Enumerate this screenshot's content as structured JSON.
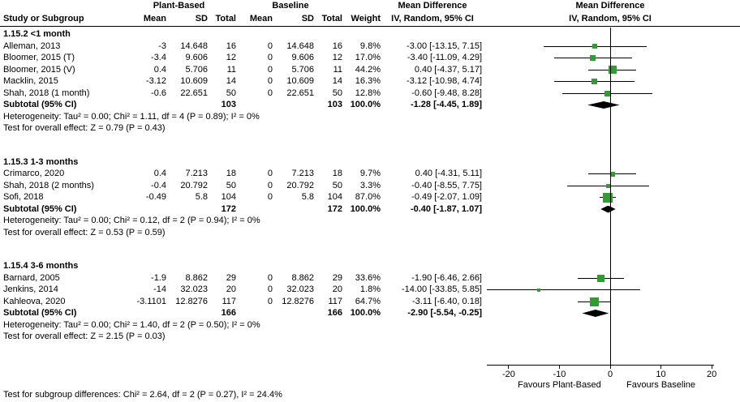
{
  "header": {
    "study": "Study or Subgroup",
    "group1": "Plant-Based",
    "group2": "Baseline",
    "mean": "Mean",
    "sd": "SD",
    "total": "Total",
    "weight": "Weight",
    "md": "Mean Difference",
    "md_method": "IV, Random, 95% CI"
  },
  "chart_data": {
    "type": "forest",
    "effect_measure": "Mean Difference, IV, Random, 95% CI",
    "x_min": -24.3,
    "x_max": 24.3,
    "x_ticks": [
      -20,
      -10,
      0,
      10,
      20
    ],
    "x_axis_left_label": "Favours Plant-Based",
    "x_axis_right_label": "Favours Baseline",
    "marker_color": "#2e9e2e",
    "diamond_color": "#000000",
    "subgroups": [
      {
        "label": "1.15.2 <1 month",
        "studies": [
          {
            "study": "Alleman, 2013",
            "mean1": "-3",
            "sd1": "14.648",
            "total1": "16",
            "mean2": "0",
            "sd2": "14.648",
            "total2": "16",
            "weight": "9.8%",
            "weight_pct": 9.8,
            "md": -3.0,
            "ci_low": -13.15,
            "ci_high": 7.15,
            "md_label": "-3.00 [-13.15, 7.15]"
          },
          {
            "study": "Bloomer, 2015 (T)",
            "mean1": "-3.4",
            "sd1": "9.606",
            "total1": "12",
            "mean2": "0",
            "sd2": "9.606",
            "total2": "12",
            "weight": "17.0%",
            "weight_pct": 17.0,
            "md": -3.4,
            "ci_low": -11.09,
            "ci_high": 4.29,
            "md_label": "-3.40 [-11.09, 4.29]"
          },
          {
            "study": "Bloomer, 2015 (V)",
            "mean1": "0.4",
            "sd1": "5.706",
            "total1": "11",
            "mean2": "0",
            "sd2": "5.706",
            "total2": "11",
            "weight": "44.2%",
            "weight_pct": 44.2,
            "md": 0.4,
            "ci_low": -4.37,
            "ci_high": 5.17,
            "md_label": "0.40 [-4.37, 5.17]"
          },
          {
            "study": "Macklin, 2015",
            "mean1": "-3.12",
            "sd1": "10.609",
            "total1": "14",
            "mean2": "0",
            "sd2": "10.609",
            "total2": "14",
            "weight": "16.3%",
            "weight_pct": 16.3,
            "md": -3.12,
            "ci_low": -10.98,
            "ci_high": 4.74,
            "md_label": "-3.12 [-10.98, 4.74]"
          },
          {
            "study": "Shah, 2018 (1 month)",
            "mean1": "-0.6",
            "sd1": "22.651",
            "total1": "50",
            "mean2": "0",
            "sd2": "22.651",
            "total2": "50",
            "weight": "12.8%",
            "weight_pct": 12.8,
            "md": -0.6,
            "ci_low": -9.48,
            "ci_high": 8.28,
            "md_label": "-0.60 [-9.48, 8.28]"
          }
        ],
        "subtotal": {
          "label": "Subtotal (95% CI)",
          "total1": "103",
          "total2": "103",
          "weight": "100.0%",
          "md": -1.28,
          "ci_low": -4.45,
          "ci_high": 1.89,
          "md_label": "-1.28 [-4.45, 1.89]"
        },
        "heterogeneity": "Heterogeneity: Tau² = 0.00; Chi² = 1.11, df = 4 (P = 0.89); I² = 0%",
        "overall_effect": "Test for overall effect: Z = 0.79 (P = 0.43)"
      },
      {
        "label": "1.15.3 1-3 months",
        "studies": [
          {
            "study": "Crimarco, 2020",
            "mean1": "0.4",
            "sd1": "7.213",
            "total1": "18",
            "mean2": "0",
            "sd2": "7.213",
            "total2": "18",
            "weight": "9.7%",
            "weight_pct": 9.7,
            "md": 0.4,
            "ci_low": -4.31,
            "ci_high": 5.11,
            "md_label": "0.40 [-4.31, 5.11]"
          },
          {
            "study": "Shah, 2018 (2 months)",
            "mean1": "-0.4",
            "sd1": "20.792",
            "total1": "50",
            "mean2": "0",
            "sd2": "20.792",
            "total2": "50",
            "weight": "3.3%",
            "weight_pct": 3.3,
            "md": -0.4,
            "ci_low": -8.55,
            "ci_high": 7.75,
            "md_label": "-0.40 [-8.55, 7.75]"
          },
          {
            "study": "Sofi, 2018",
            "mean1": "-0.49",
            "sd1": "5.8",
            "total1": "104",
            "mean2": "0",
            "sd2": "5.8",
            "total2": "104",
            "weight": "87.0%",
            "weight_pct": 87.0,
            "md": -0.49,
            "ci_low": -2.07,
            "ci_high": 1.09,
            "md_label": "-0.49 [-2.07, 1.09]"
          }
        ],
        "subtotal": {
          "label": "Subtotal (95% CI)",
          "total1": "172",
          "total2": "172",
          "weight": "100.0%",
          "md": -0.4,
          "ci_low": -1.87,
          "ci_high": 1.07,
          "md_label": "-0.40 [-1.87, 1.07]"
        },
        "heterogeneity": "Heterogeneity: Tau² = 0.00; Chi² = 0.12, df = 2 (P = 0.94); I² = 0%",
        "overall_effect": "Test for overall effect: Z = 0.53 (P = 0.59)"
      },
      {
        "label": "1.15.4 3-6 months",
        "studies": [
          {
            "study": "Barnard, 2005",
            "mean1": "-1.9",
            "sd1": "8.862",
            "total1": "29",
            "mean2": "0",
            "sd2": "8.862",
            "total2": "29",
            "weight": "33.6%",
            "weight_pct": 33.6,
            "md": -1.9,
            "ci_low": -6.46,
            "ci_high": 2.66,
            "md_label": "-1.90 [-6.46, 2.66]"
          },
          {
            "study": "Jenkins, 2014",
            "mean1": "-14",
            "sd1": "32.023",
            "total1": "20",
            "mean2": "0",
            "sd2": "32.023",
            "total2": "20",
            "weight": "1.8%",
            "weight_pct": 1.8,
            "md": -14.0,
            "ci_low": -33.85,
            "ci_high": 5.85,
            "md_label": "-14.00 [-33.85, 5.85]"
          },
          {
            "study": "Kahleova, 2020",
            "mean1": "-3.1101",
            "sd1": "12.8276",
            "total1": "117",
            "mean2": "0",
            "sd2": "12.8276",
            "total2": "117",
            "weight": "64.7%",
            "weight_pct": 64.7,
            "md": -3.11,
            "ci_low": -6.4,
            "ci_high": 0.18,
            "md_label": "-3.11 [-6.40, 0.18]"
          }
        ],
        "subtotal": {
          "label": "Subtotal (95% CI)",
          "total1": "166",
          "total2": "166",
          "weight": "100.0%",
          "md": -2.9,
          "ci_low": -5.54,
          "ci_high": -0.25,
          "md_label": "-2.90 [-5.54, -0.25]"
        },
        "heterogeneity": "Heterogeneity: Tau² = 0.00; Chi² = 1.40, df = 2 (P = 0.50); I² = 0%",
        "overall_effect": "Test for overall effect: Z = 2.15 (P = 0.03)"
      }
    ],
    "subgroup_difference": "Test for subgroup differences: Chi² = 2.64, df = 2 (P = 0.27), I² = 24.4%"
  }
}
